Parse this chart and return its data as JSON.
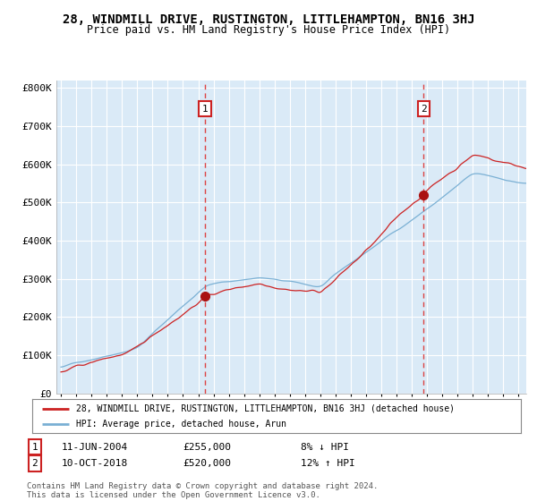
{
  "title": "28, WINDMILL DRIVE, RUSTINGTON, LITTLEHAMPTON, BN16 3HJ",
  "subtitle": "Price paid vs. HM Land Registry's House Price Index (HPI)",
  "title_fontsize": 10,
  "subtitle_fontsize": 8.5,
  "xlim_start": 1994.7,
  "xlim_end": 2025.5,
  "ylim": [
    0,
    820000
  ],
  "yticks": [
    0,
    100000,
    200000,
    300000,
    400000,
    500000,
    600000,
    700000,
    800000
  ],
  "ytick_labels": [
    "£0",
    "£100K",
    "£200K",
    "£300K",
    "£400K",
    "£500K",
    "£600K",
    "£700K",
    "£800K"
  ],
  "bg_color": "#daeaf7",
  "fig_bg_color": "#ffffff",
  "grid_color": "#ffffff",
  "hpi_color": "#7ab0d4",
  "price_color": "#cc2222",
  "marker_color": "#aa1111",
  "dashed_line_color": "#dd4444",
  "sale1_year": 2004.44,
  "sale1_price": 255000,
  "sale1_label": "1",
  "sale2_year": 2018.77,
  "sale2_price": 520000,
  "sale2_label": "2",
  "legend_line1": "28, WINDMILL DRIVE, RUSTINGTON, LITTLEHAMPTON, BN16 3HJ (detached house)",
  "legend_line2": "HPI: Average price, detached house, Arun",
  "note1_num": "1",
  "note1_date": "11-JUN-2004",
  "note1_price": "£255,000",
  "note1_hpi": "8% ↓ HPI",
  "note2_num": "2",
  "note2_date": "10-OCT-2018",
  "note2_price": "£520,000",
  "note2_hpi": "12% ↑ HPI",
  "copyright": "Contains HM Land Registry data © Crown copyright and database right 2024.\nThis data is licensed under the Open Government Licence v3.0."
}
